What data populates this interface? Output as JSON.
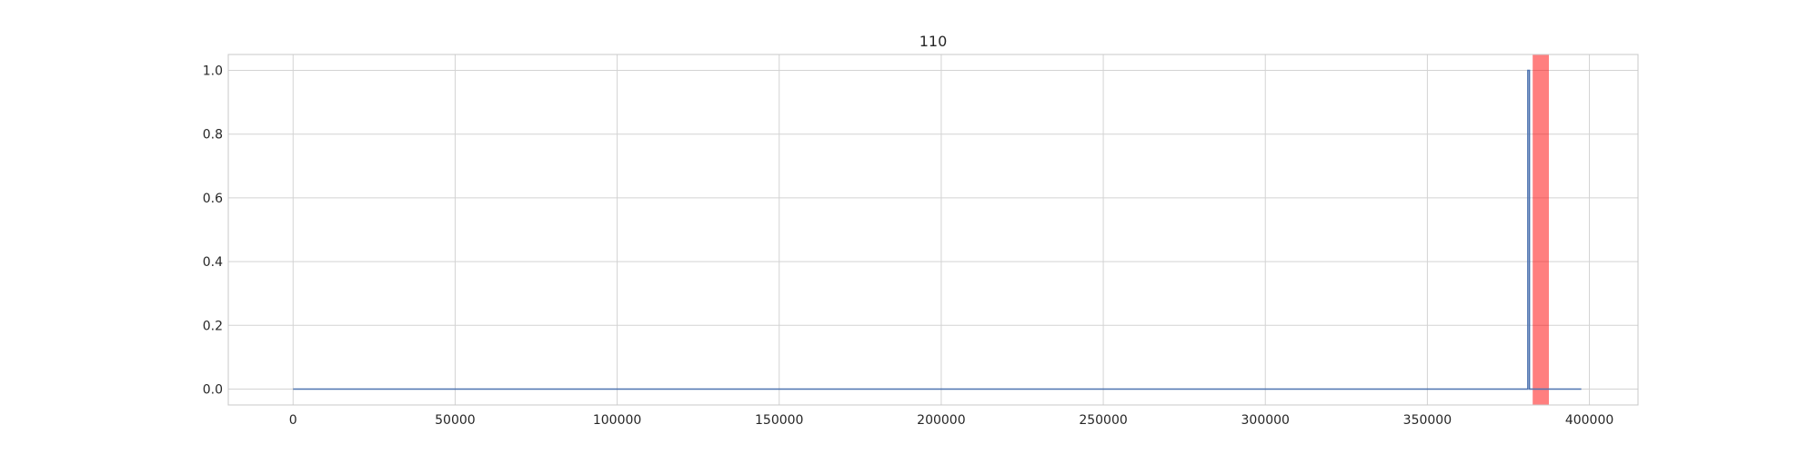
{
  "chart_data": {
    "type": "line",
    "title": "110",
    "xlabel": "",
    "ylabel": "",
    "xlim": [
      -20000,
      415000
    ],
    "ylim": [
      -0.05,
      1.05
    ],
    "xticks": [
      0,
      50000,
      100000,
      150000,
      200000,
      250000,
      300000,
      350000,
      400000
    ],
    "yticks": [
      0.0,
      0.2,
      0.4,
      0.6,
      0.8,
      1.0
    ],
    "ytick_labels": [
      "0.0",
      "0.2",
      "0.4",
      "0.6",
      "0.8",
      "1.0"
    ],
    "grid": true,
    "series": [
      {
        "color": "#4c72b0",
        "x": [
          0,
          381000,
          381000,
          381500,
          381500,
          397500
        ],
        "y": [
          0,
          0,
          1.0,
          1.0,
          0,
          0
        ]
      }
    ],
    "highlight_span": {
      "x_start": 382500,
      "x_end": 387500,
      "color": "#ff0000",
      "opacity": 0.5
    },
    "colors": {
      "grid": "#d3d3d3",
      "frame": "#c8c8c8",
      "text": "#262626"
    }
  }
}
